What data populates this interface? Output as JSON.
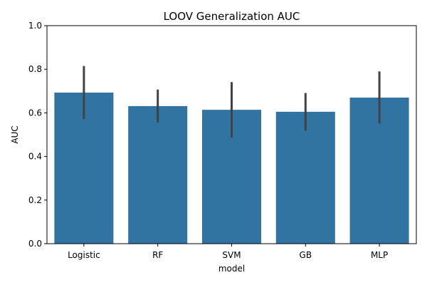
{
  "chart_data": {
    "type": "bar",
    "title": "LOOV Generalization AUC",
    "xlabel": "model",
    "ylabel": "AUC",
    "categories": [
      "Logistic",
      "RF",
      "SVM",
      "GB",
      "MLP"
    ],
    "values": [
      0.693,
      0.631,
      0.614,
      0.605,
      0.67
    ],
    "error_low": [
      0.572,
      0.556,
      0.487,
      0.518,
      0.551
    ],
    "error_high": [
      0.815,
      0.707,
      0.741,
      0.691,
      0.79
    ],
    "ylim": [
      0,
      1.0
    ],
    "yticks": [
      0.0,
      0.2,
      0.4,
      0.6,
      0.8,
      1.0
    ],
    "ytick_labels": [
      "0.0",
      "0.2",
      "0.4",
      "0.6",
      "0.8",
      "1.0"
    ],
    "grid": false,
    "legend": "none",
    "bar_color": "#3274a1",
    "error_color": "#424242"
  }
}
